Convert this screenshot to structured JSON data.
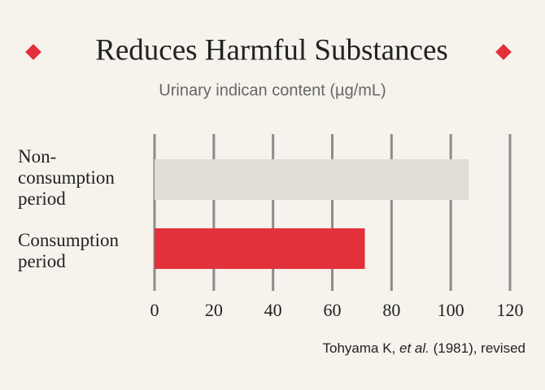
{
  "chart_data": {
    "type": "hbar",
    "title": "Reduces Harmful Substances",
    "subtitle": "Urinary indican content (µg/mL)",
    "categories": [
      "Non-\nconsumption\nperiod",
      "Consumption\nperiod"
    ],
    "values": [
      106,
      71
    ],
    "colors": [
      "#e0ddd6",
      "#e3313b"
    ],
    "xlim": [
      0,
      120
    ],
    "xticks": [
      0,
      20,
      40,
      60,
      80,
      100,
      120
    ],
    "grid": true,
    "source": [
      "Tohyama K, ",
      "et al.",
      " (1981), revised"
    ]
  }
}
